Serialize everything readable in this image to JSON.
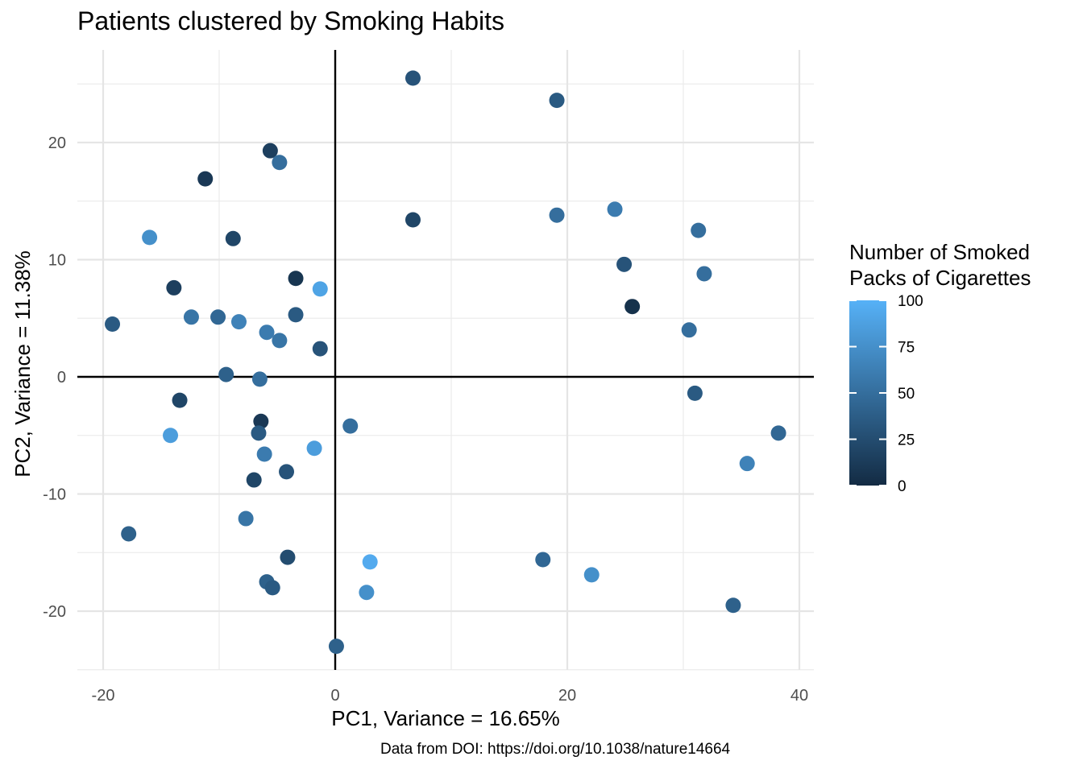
{
  "chart_data": {
    "type": "scatter",
    "title": "Patients clustered by Smoking Habits",
    "caption": "Data from DOI: https://doi.org/10.1038/nature14664",
    "xlabel": "PC1, Variance = 16.65%",
    "ylabel": "PC2, Variance = 11.38%",
    "xlim": [
      -22,
      41
    ],
    "ylim": [
      -25.5,
      27.5
    ],
    "x_ticks": [
      -20,
      0,
      20,
      40
    ],
    "y_ticks": [
      -20,
      -10,
      0,
      10,
      20
    ],
    "grid": true,
    "reference_lines": {
      "x": 0,
      "y": 0
    },
    "legend": {
      "title_line1": "Number of Smoked",
      "title_line2": "Packs of Cigarettes",
      "position": "right",
      "min": 0,
      "max": 100,
      "ticks": [
        0,
        25,
        50,
        75,
        100
      ],
      "color_low": "#132B43",
      "color_high": "#56B1F7"
    },
    "points": [
      {
        "x": 6.7,
        "y": 25.5,
        "packs": 30
      },
      {
        "x": 19.1,
        "y": 23.6,
        "packs": 35
      },
      {
        "x": -5.6,
        "y": 19.3,
        "packs": 15
      },
      {
        "x": -4.8,
        "y": 18.3,
        "packs": 50
      },
      {
        "x": -11.2,
        "y": 16.9,
        "packs": 10
      },
      {
        "x": 6.7,
        "y": 13.4,
        "packs": 20
      },
      {
        "x": 19.1,
        "y": 13.8,
        "packs": 50
      },
      {
        "x": 24.1,
        "y": 14.3,
        "packs": 60
      },
      {
        "x": 31.3,
        "y": 12.5,
        "packs": 50
      },
      {
        "x": -16.0,
        "y": 11.9,
        "packs": 75
      },
      {
        "x": -8.8,
        "y": 11.8,
        "packs": 20
      },
      {
        "x": 24.9,
        "y": 9.6,
        "packs": 30
      },
      {
        "x": 31.8,
        "y": 8.8,
        "packs": 50
      },
      {
        "x": -3.4,
        "y": 8.4,
        "packs": 8
      },
      {
        "x": -1.3,
        "y": 7.5,
        "packs": 90
      },
      {
        "x": -13.9,
        "y": 7.6,
        "packs": 15
      },
      {
        "x": 25.6,
        "y": 6.0,
        "packs": 5
      },
      {
        "x": -3.4,
        "y": 5.3,
        "packs": 35
      },
      {
        "x": -12.4,
        "y": 5.1,
        "packs": 55
      },
      {
        "x": -10.1,
        "y": 5.1,
        "packs": 45
      },
      {
        "x": -8.3,
        "y": 4.7,
        "packs": 65
      },
      {
        "x": -19.2,
        "y": 4.5,
        "packs": 35
      },
      {
        "x": 30.5,
        "y": 4.0,
        "packs": 50
      },
      {
        "x": -5.9,
        "y": 3.8,
        "packs": 60
      },
      {
        "x": -4.8,
        "y": 3.1,
        "packs": 55
      },
      {
        "x": -1.3,
        "y": 2.4,
        "packs": 30
      },
      {
        "x": -9.4,
        "y": 0.2,
        "packs": 40
      },
      {
        "x": -6.5,
        "y": -0.2,
        "packs": 50
      },
      {
        "x": 31.0,
        "y": -1.4,
        "packs": 35
      },
      {
        "x": -13.4,
        "y": -2.0,
        "packs": 20
      },
      {
        "x": -6.4,
        "y": -3.8,
        "packs": 10
      },
      {
        "x": 1.3,
        "y": -4.2,
        "packs": 50
      },
      {
        "x": 38.2,
        "y": -4.8,
        "packs": 45
      },
      {
        "x": -6.6,
        "y": -4.8,
        "packs": 35
      },
      {
        "x": -14.2,
        "y": -5.0,
        "packs": 85
      },
      {
        "x": -1.8,
        "y": -6.1,
        "packs": 85
      },
      {
        "x": -6.1,
        "y": -6.6,
        "packs": 60
      },
      {
        "x": 35.5,
        "y": -7.4,
        "packs": 65
      },
      {
        "x": -4.2,
        "y": -8.1,
        "packs": 30
      },
      {
        "x": -7.0,
        "y": -8.8,
        "packs": 20
      },
      {
        "x": -7.7,
        "y": -12.1,
        "packs": 55
      },
      {
        "x": -17.8,
        "y": -13.4,
        "packs": 40
      },
      {
        "x": -4.1,
        "y": -15.4,
        "packs": 25
      },
      {
        "x": 17.9,
        "y": -15.6,
        "packs": 45
      },
      {
        "x": 3.0,
        "y": -15.8,
        "packs": 95
      },
      {
        "x": 22.1,
        "y": -16.9,
        "packs": 75
      },
      {
        "x": -5.9,
        "y": -17.5,
        "packs": 40
      },
      {
        "x": -5.4,
        "y": -18.0,
        "packs": 35
      },
      {
        "x": 2.7,
        "y": -18.4,
        "packs": 75
      },
      {
        "x": 34.3,
        "y": -19.5,
        "packs": 40
      },
      {
        "x": 0.1,
        "y": -23.0,
        "packs": 40
      }
    ]
  }
}
